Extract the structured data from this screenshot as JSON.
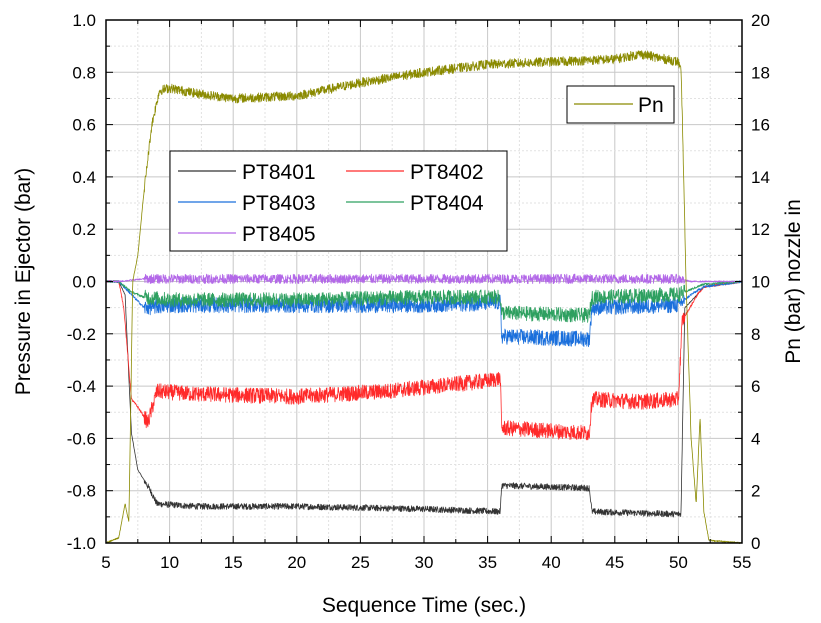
{
  "chart_data": {
    "type": "line",
    "xlabel": "Sequence Time (sec.)",
    "ylabel_left": "Pressure in Ejector (bar)",
    "ylabel_right": "Pn (bar) nozzle in",
    "xlim": [
      5,
      55
    ],
    "ylim_left": [
      -1.0,
      1.0
    ],
    "ylim_right": [
      0,
      20
    ],
    "x_ticks": [
      "5",
      "10",
      "15",
      "20",
      "25",
      "30",
      "35",
      "40",
      "45",
      "50",
      "55"
    ],
    "y_ticks_left": [
      "1.0",
      "0.8",
      "0.6",
      "0.4",
      "0.2",
      "0.0",
      "-0.2",
      "-0.4",
      "-0.6",
      "-0.8",
      "-1.0"
    ],
    "y_ticks_right": [
      "20",
      "18",
      "16",
      "14",
      "12",
      "10",
      "8",
      "6",
      "4",
      "2",
      "0"
    ],
    "grid": true,
    "legend_main_position": "upper-left",
    "legend_pn_position": "top-right",
    "series": [
      {
        "name": "PT8401",
        "axis": "left",
        "color": "#333333",
        "noise": 0.012,
        "points": [
          [
            5,
            0
          ],
          [
            6,
            0
          ],
          [
            6.5,
            -0.05
          ],
          [
            7,
            -0.58
          ],
          [
            7.5,
            -0.72
          ],
          [
            8.5,
            -0.8
          ],
          [
            9,
            -0.85
          ],
          [
            12,
            -0.86
          ],
          [
            20,
            -0.86
          ],
          [
            30,
            -0.87
          ],
          [
            36,
            -0.88
          ],
          [
            36.1,
            -0.78
          ],
          [
            43,
            -0.79
          ],
          [
            43.2,
            -0.88
          ],
          [
            50.2,
            -0.89
          ],
          [
            50.5,
            -0.1
          ],
          [
            51.5,
            -0.05
          ],
          [
            52,
            -0.02
          ],
          [
            55,
            0
          ]
        ]
      },
      {
        "name": "PT8402",
        "axis": "left",
        "color": "#ff2a2a",
        "noise": 0.03,
        "points": [
          [
            5,
            0
          ],
          [
            6,
            0
          ],
          [
            6.4,
            -0.1
          ],
          [
            7,
            -0.45
          ],
          [
            7.5,
            -0.48
          ],
          [
            8.3,
            -0.54
          ],
          [
            9,
            -0.42
          ],
          [
            12,
            -0.43
          ],
          [
            20,
            -0.44
          ],
          [
            27,
            -0.42
          ],
          [
            35,
            -0.38
          ],
          [
            36,
            -0.37
          ],
          [
            36.1,
            -0.56
          ],
          [
            43,
            -0.58
          ],
          [
            43.2,
            -0.45
          ],
          [
            47,
            -0.46
          ],
          [
            50,
            -0.45
          ],
          [
            50.3,
            -0.15
          ],
          [
            51.5,
            -0.05
          ],
          [
            52,
            -0.02
          ],
          [
            55,
            0
          ]
        ]
      },
      {
        "name": "PT8403",
        "axis": "left",
        "color": "#1a6fdc",
        "noise": 0.03,
        "points": [
          [
            5,
            0
          ],
          [
            6,
            0
          ],
          [
            7,
            -0.05
          ],
          [
            8,
            -0.1
          ],
          [
            10,
            -0.09
          ],
          [
            20,
            -0.09
          ],
          [
            30,
            -0.09
          ],
          [
            36,
            -0.08
          ],
          [
            36.1,
            -0.21
          ],
          [
            43,
            -0.22
          ],
          [
            43.2,
            -0.1
          ],
          [
            50,
            -0.09
          ],
          [
            51,
            -0.05
          ],
          [
            52,
            -0.02
          ],
          [
            55,
            0
          ]
        ]
      },
      {
        "name": "PT8404",
        "axis": "left",
        "color": "#2ea060",
        "noise": 0.028,
        "points": [
          [
            5,
            0
          ],
          [
            6,
            0
          ],
          [
            7,
            -0.04
          ],
          [
            8,
            -0.06
          ],
          [
            10,
            -0.07
          ],
          [
            20,
            -0.07
          ],
          [
            30,
            -0.06
          ],
          [
            36,
            -0.06
          ],
          [
            36.1,
            -0.12
          ],
          [
            43,
            -0.13
          ],
          [
            43.2,
            -0.06
          ],
          [
            50,
            -0.05
          ],
          [
            51,
            -0.03
          ],
          [
            52,
            -0.01
          ],
          [
            55,
            0
          ]
        ]
      },
      {
        "name": "PT8405",
        "axis": "left",
        "color": "#b368e8",
        "noise": 0.018,
        "points": [
          [
            5,
            0
          ],
          [
            6,
            0
          ],
          [
            8,
            0.01
          ],
          [
            20,
            0.01
          ],
          [
            30,
            0.01
          ],
          [
            40,
            0.01
          ],
          [
            50,
            0.01
          ],
          [
            51,
            0
          ],
          [
            55,
            0
          ]
        ]
      },
      {
        "name": "Pn",
        "axis": "right",
        "color": "#8a8a00",
        "noise": 0.18,
        "points": [
          [
            5,
            0
          ],
          [
            6,
            0.2
          ],
          [
            6.5,
            1.5
          ],
          [
            6.8,
            0.8
          ],
          [
            7.1,
            10
          ],
          [
            7.5,
            11
          ],
          [
            8,
            13.5
          ],
          [
            8.6,
            16
          ],
          [
            9.2,
            17.3
          ],
          [
            10,
            17.4
          ],
          [
            12,
            17.2
          ],
          [
            15,
            17.0
          ],
          [
            20,
            17.1
          ],
          [
            25,
            17.6
          ],
          [
            30,
            18.0
          ],
          [
            35,
            18.3
          ],
          [
            40,
            18.4
          ],
          [
            45,
            18.5
          ],
          [
            47,
            18.7
          ],
          [
            50,
            18.4
          ],
          [
            50.2,
            18.0
          ],
          [
            50.3,
            16.5
          ],
          [
            50.6,
            10
          ],
          [
            51,
            4
          ],
          [
            51.4,
            1.5
          ],
          [
            51.7,
            4.8
          ],
          [
            52,
            1.2
          ],
          [
            52.4,
            0.1
          ],
          [
            55,
            0
          ]
        ]
      }
    ]
  },
  "legend_main": {
    "items": [
      {
        "label": "PT8401",
        "color": "#333333"
      },
      {
        "label": "PT8402",
        "color": "#ff2a2a"
      },
      {
        "label": "PT8403",
        "color": "#1a6fdc"
      },
      {
        "label": "PT8404",
        "color": "#2ea060"
      },
      {
        "label": "PT8405",
        "color": "#b368e8"
      }
    ]
  },
  "legend_pn": {
    "items": [
      {
        "label": "Pn",
        "color": "#8a8a00"
      }
    ]
  }
}
